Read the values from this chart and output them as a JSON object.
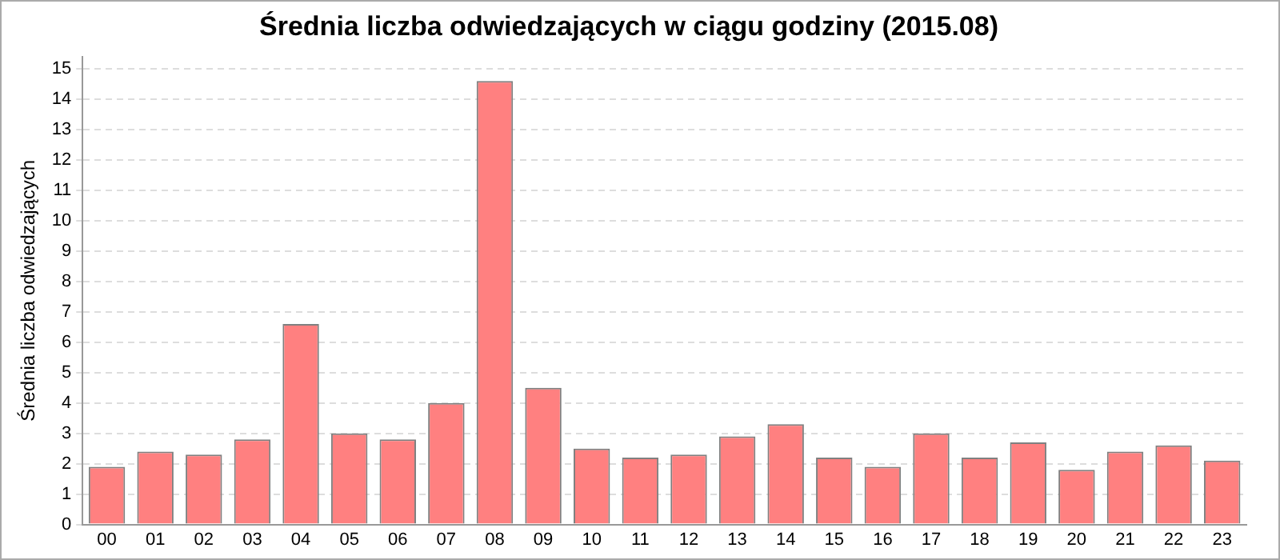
{
  "chart_data": {
    "type": "bar",
    "title": "Średnia liczba odwiedzających w ciągu godziny (2015.08)",
    "ylabel": "Średnia liczba odwiedzających",
    "categories": [
      "00",
      "01",
      "02",
      "03",
      "04",
      "05",
      "06",
      "07",
      "08",
      "09",
      "10",
      "11",
      "12",
      "13",
      "14",
      "15",
      "16",
      "17",
      "18",
      "19",
      "20",
      "21",
      "22",
      "23"
    ],
    "values": [
      1.9,
      2.4,
      2.3,
      2.8,
      6.6,
      3.0,
      2.8,
      4.0,
      14.6,
      4.5,
      2.5,
      2.2,
      2.3,
      2.9,
      3.3,
      2.2,
      1.9,
      3.0,
      2.2,
      2.7,
      1.8,
      2.4,
      2.6,
      2.1
    ],
    "color": "#ff8080",
    "ylim": [
      0,
      15.4
    ],
    "yticks": [
      0,
      1,
      2,
      3,
      4,
      5,
      6,
      7,
      8,
      9,
      10,
      11,
      12,
      13,
      14,
      15
    ],
    "grid": "y",
    "legend": false
  }
}
